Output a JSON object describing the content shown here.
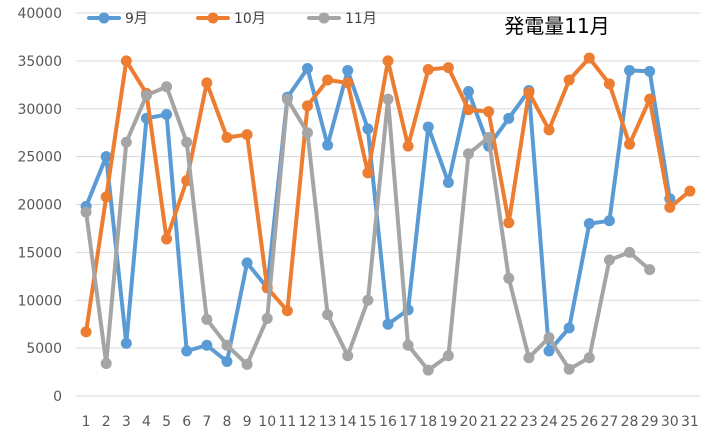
{
  "chart_data": {
    "type": "line",
    "title": "発電量11月",
    "xlabel": "",
    "ylabel": "",
    "x": [
      1,
      2,
      3,
      4,
      5,
      6,
      7,
      8,
      9,
      10,
      11,
      12,
      13,
      14,
      15,
      16,
      17,
      18,
      19,
      20,
      21,
      22,
      23,
      24,
      25,
      26,
      27,
      28,
      29,
      30,
      31
    ],
    "ylim": [
      0,
      40000
    ],
    "yticks": [
      0,
      5000,
      10000,
      15000,
      20000,
      25000,
      30000,
      35000,
      40000
    ],
    "grid": true,
    "legend_position": "top-left",
    "series": [
      {
        "name": "9月",
        "color": "#5B9BD5",
        "values": [
          19800,
          25000,
          5500,
          29000,
          29400,
          4700,
          5300,
          3600,
          13900,
          11300,
          31200,
          34200,
          26200,
          34000,
          27900,
          7500,
          9000,
          28100,
          22300,
          31800,
          26100,
          29000,
          31900,
          4700,
          7100,
          18000,
          18300,
          34000,
          33900,
          20600,
          null
        ]
      },
      {
        "name": "10月",
        "color": "#ED7D31",
        "values": [
          6700,
          20800,
          35000,
          31600,
          16400,
          22500,
          32700,
          27000,
          27300,
          11300,
          8900,
          30300,
          33000,
          32700,
          23300,
          35000,
          26100,
          34100,
          34300,
          29900,
          29700,
          18100,
          31700,
          27800,
          33000,
          35300,
          32600,
          26300,
          31000,
          19700,
          21400
        ]
      },
      {
        "name": "11月",
        "color": "#A5A5A5",
        "values": [
          19200,
          3400,
          26500,
          31400,
          32300,
          26500,
          8000,
          5300,
          3300,
          8100,
          31000,
          27500,
          8500,
          4200,
          10000,
          31000,
          5300,
          2700,
          4200,
          25300,
          27000,
          12300,
          4000,
          6100,
          2800,
          4000,
          14200,
          15000,
          13200,
          null,
          null
        ]
      }
    ]
  }
}
